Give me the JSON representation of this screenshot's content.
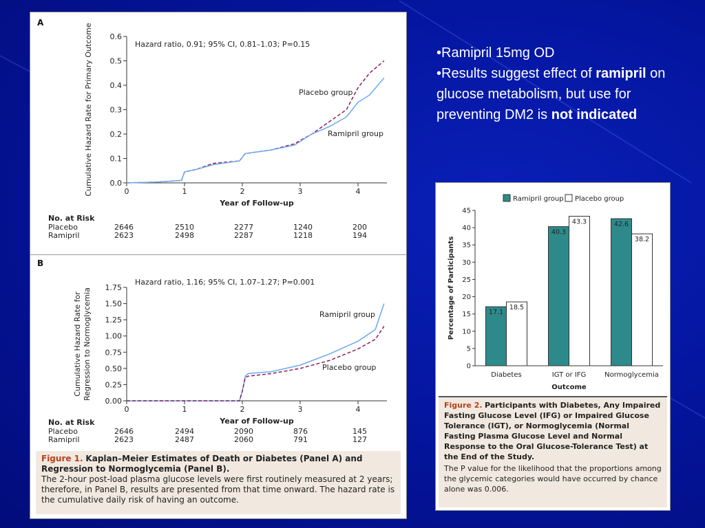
{
  "bullets": {
    "b1": "•Ramipril 15mg OD",
    "b2_prefix": "•Results suggest effect of",
    "b2_bold": "ramipril",
    "b2_rest": "on glucose metabolism, but use for preventing DM2 is",
    "b2_bold_end": "not indicated"
  },
  "figure1": {
    "panelA": {
      "label": "A",
      "hazard": "Hazard ratio, 0.91; 95% CI, 0.81–1.03;  P=0.15",
      "risk_title": "No. at Risk",
      "risk_rows": [
        {
          "name": "Placebo",
          "values": [
            "2646",
            "2510",
            "2277",
            "1240",
            "200"
          ]
        },
        {
          "name": "Ramipril",
          "values": [
            "2623",
            "2498",
            "2287",
            "1218",
            "194"
          ]
        }
      ]
    },
    "panelB": {
      "label": "B",
      "hazard": "Hazard ratio, 1.16; 95% CI, 1.07–1.27;  P=0.001",
      "risk_title": "No. at Risk",
      "risk_rows": [
        {
          "name": "Placebo",
          "values": [
            "2646",
            "2494",
            "2090",
            "876",
            "145"
          ]
        },
        {
          "name": "Ramipril",
          "values": [
            "2623",
            "2487",
            "2060",
            "791",
            "127"
          ]
        }
      ]
    },
    "caption": {
      "fig": "Figure 1.",
      "title": "Kaplan–Meier Estimates of Death or Diabetes (Panel A) and Regression to Normoglycemia (Panel B).",
      "body": "The 2-hour post-load plasma glucose levels were first routinely measured at 2 years; therefore, in Panel B, results are presented from that time onward. The hazard rate is the cumulative daily risk of having an outcome."
    }
  },
  "figure2": {
    "caption": {
      "fig": "Figure 2.",
      "title": "Participants with Diabetes, Any Impaired Fasting Glucose Level (IFG) or Impaired Glucose Tolerance (IGT), or Normoglycemia (Normal Fasting Plasma Glucose Level and Normal Response to the Oral Glucose-Tolerance Test) at the End of the Study.",
      "body": "The P value for the likelihood that the proportions among the glycemic categories would have occurred by chance alone was 0.006."
    }
  },
  "colors": {
    "ramipril": "#6aa8f0",
    "placebo": "#8b1a5a",
    "bar_ramipril": "#2e8a8a",
    "bar_placebo": "#ffffff",
    "caption_fig": "#b8401f"
  },
  "chart_data": [
    {
      "type": "line",
      "title": "",
      "xlabel": "Year of Follow-up",
      "ylabel": "Cumulative Hazard Rate for Primary Outcome",
      "xlim": [
        0,
        4.5
      ],
      "ylim": [
        0,
        0.6
      ],
      "xticks": [
        "0",
        "1",
        "2",
        "3",
        "4"
      ],
      "yticks": [
        "0.0",
        "0.1",
        "0.2",
        "0.3",
        "0.4",
        "0.5",
        "0.6"
      ],
      "series": [
        {
          "name": "Placebo group",
          "x": [
            0,
            0.5,
            0.95,
            1.0,
            1.2,
            1.5,
            1.95,
            2.05,
            2.5,
            2.9,
            3.2,
            3.5,
            3.8,
            4.0,
            4.2,
            4.45
          ],
          "y": [
            0,
            0.003,
            0.01,
            0.045,
            0.055,
            0.08,
            0.09,
            0.12,
            0.135,
            0.16,
            0.2,
            0.25,
            0.3,
            0.39,
            0.45,
            0.5
          ]
        },
        {
          "name": "Ramipril group",
          "x": [
            0,
            0.5,
            0.95,
            1.0,
            1.2,
            1.5,
            1.95,
            2.05,
            2.5,
            2.9,
            3.2,
            3.5,
            3.8,
            4.0,
            4.2,
            4.45
          ],
          "y": [
            0,
            0.003,
            0.01,
            0.045,
            0.055,
            0.075,
            0.09,
            0.12,
            0.135,
            0.155,
            0.2,
            0.23,
            0.27,
            0.33,
            0.36,
            0.43
          ]
        }
      ]
    },
    {
      "type": "line",
      "title": "",
      "xlabel": "Year of Follow-up",
      "ylabel": "Cumulative Hazard Rate for Regression to Normoglycemia",
      "xlim": [
        0,
        4.5
      ],
      "ylim": [
        0,
        1.75
      ],
      "xticks": [
        "0",
        "1",
        "2",
        "3",
        "4"
      ],
      "yticks": [
        "0.00",
        "0.25",
        "0.50",
        "0.75",
        "1.00",
        "1.25",
        "1.50",
        "1.75"
      ],
      "series": [
        {
          "name": "Ramipril group",
          "x": [
            0,
            1.95,
            2.0,
            2.05,
            2.1,
            2.5,
            3.0,
            3.5,
            4.0,
            4.3,
            4.45
          ],
          "y": [
            0,
            0,
            0.15,
            0.38,
            0.42,
            0.45,
            0.55,
            0.72,
            0.92,
            1.1,
            1.5
          ]
        },
        {
          "name": "Placebo group",
          "x": [
            0,
            1.95,
            2.0,
            2.05,
            2.1,
            2.5,
            3.0,
            3.5,
            4.0,
            4.3,
            4.45
          ],
          "y": [
            0,
            0,
            0.15,
            0.36,
            0.38,
            0.42,
            0.5,
            0.62,
            0.8,
            0.95,
            1.15
          ]
        }
      ]
    },
    {
      "type": "bar",
      "title": "",
      "xlabel": "Outcome",
      "ylabel": "Percentage of Participants",
      "ylim": [
        0,
        45
      ],
      "yticks": [
        "0",
        "5",
        "10",
        "15",
        "20",
        "25",
        "30",
        "35",
        "40",
        "45"
      ],
      "categories": [
        "Diabetes",
        "IGT or IFG",
        "Normoglycemia"
      ],
      "series": [
        {
          "name": "Ramipril group",
          "values": [
            17.1,
            40.3,
            42.6
          ],
          "labels": [
            "17.1",
            "40.3",
            "42.6"
          ]
        },
        {
          "name": "Placebo group",
          "values": [
            18.5,
            43.3,
            38.2
          ],
          "labels": [
            "18.5",
            "43.3",
            "38.2"
          ]
        }
      ]
    }
  ]
}
